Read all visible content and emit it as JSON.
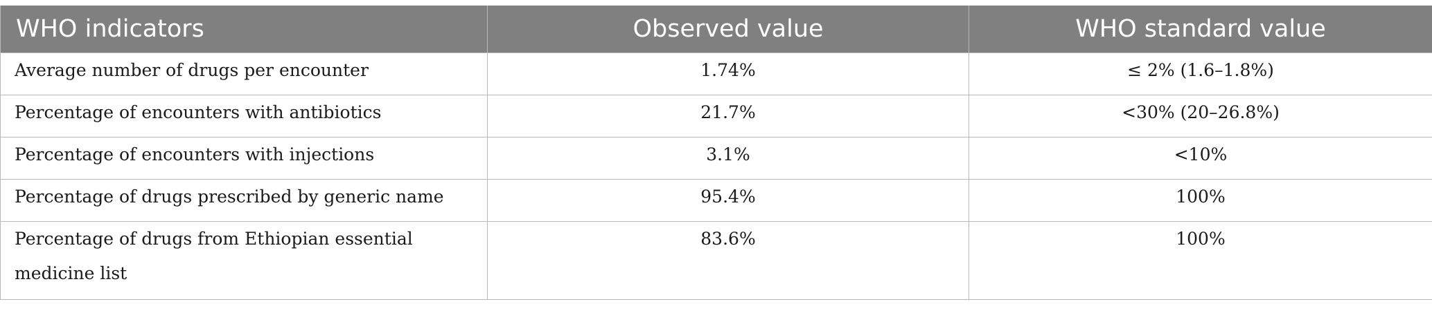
{
  "table": {
    "headers": [
      "WHO indicators",
      "Observed value",
      "WHO standard value"
    ],
    "rows": [
      {
        "indicator": "Average number of drugs per encounter",
        "observed": "1.74%",
        "standard": "≤ 2% (1.6–1.8%)"
      },
      {
        "indicator": "Percentage of encounters with antibiotics",
        "observed": "21.7%",
        "standard": "<30% (20–26.8%)"
      },
      {
        "indicator": "Percentage of encounters with injections",
        "observed": "3.1%",
        "standard": "<10%"
      },
      {
        "indicator": "Percentage of drugs prescribed by generic name",
        "observed": "95.4%",
        "standard": "100%"
      },
      {
        "indicator": "Percentage of drugs from Ethiopian essential medicine list",
        "observed": "83.6%",
        "standard": "100%"
      }
    ],
    "header_color": "#808080"
  }
}
